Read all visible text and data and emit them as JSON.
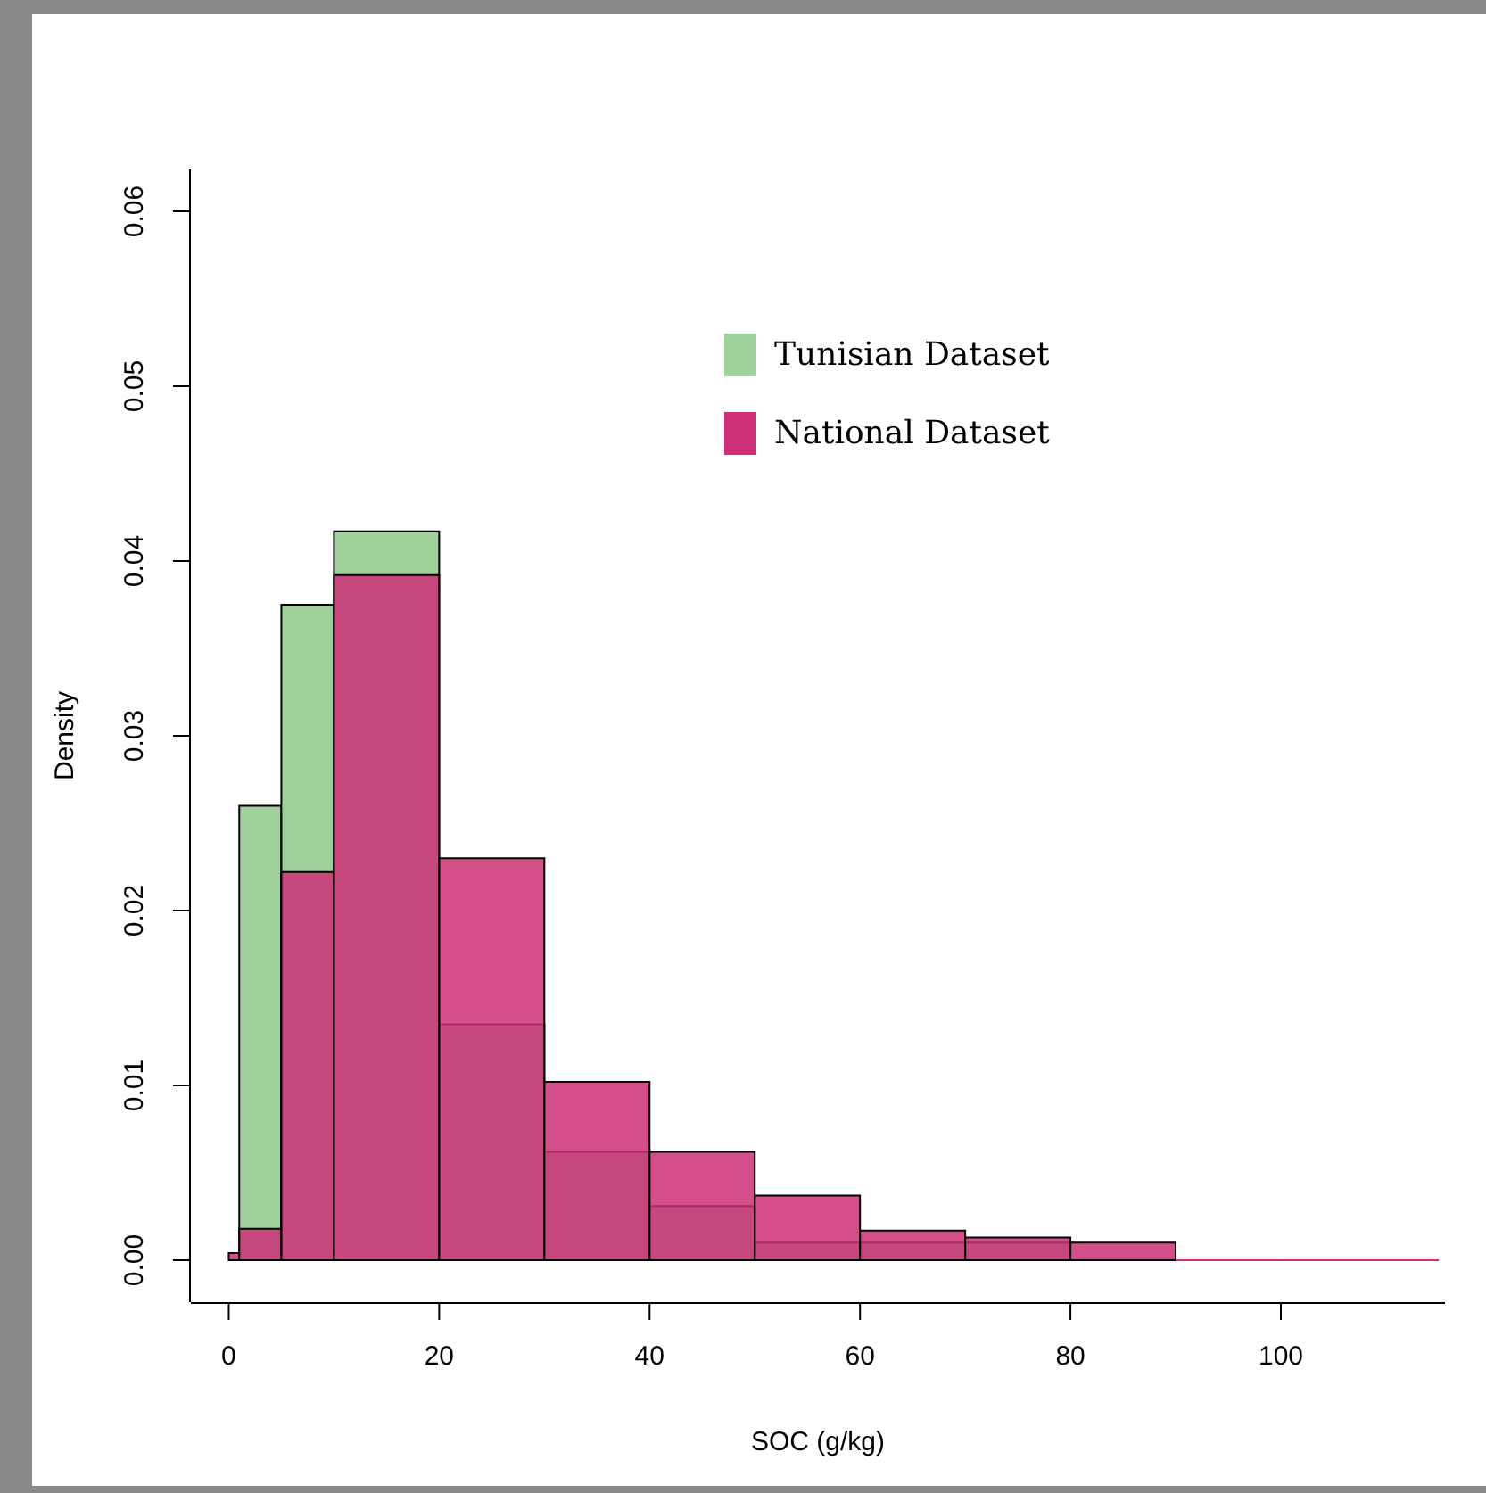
{
  "chart_data": {
    "type": "histogram",
    "xlabel": "SOC (g/kg)",
    "ylabel": "Density",
    "bins": [
      0,
      1,
      5,
      10,
      20,
      30,
      40,
      50,
      60,
      70,
      80,
      90,
      100,
      110,
      115
    ],
    "series": [
      {
        "name": "Tunisian Dataset",
        "color": "#a0d19a",
        "values": [
          0,
          0.026,
          0.0375,
          0.0417,
          0.0135,
          0.0062,
          0.0031,
          0.001,
          0.001,
          0.001,
          0,
          0,
          0,
          0
        ]
      },
      {
        "name": "National Dataset",
        "color": "#cc2f76",
        "values": [
          0.0004,
          0.0018,
          0.0222,
          0.0392,
          0.023,
          0.0102,
          0.0062,
          0.0037,
          0.0017,
          0.0013,
          0.001,
          0,
          0,
          0
        ]
      }
    ],
    "xlim": [
      -3.6,
      115.6
    ],
    "ylim": [
      -0.0024,
      0.0624
    ],
    "xticks": [
      0,
      20,
      40,
      60,
      80,
      100
    ],
    "yticks": [
      {
        "value": 0,
        "label": "0.00"
      },
      {
        "value": 0.01,
        "label": "0.01"
      },
      {
        "value": 0.02,
        "label": "0.02"
      },
      {
        "value": 0.03,
        "label": "0.03"
      },
      {
        "value": 0.04,
        "label": "0.04"
      },
      {
        "value": 0.05,
        "label": "0.05"
      },
      {
        "value": 0.06,
        "label": "0.06"
      }
    ],
    "legend": "top",
    "grid": false
  }
}
